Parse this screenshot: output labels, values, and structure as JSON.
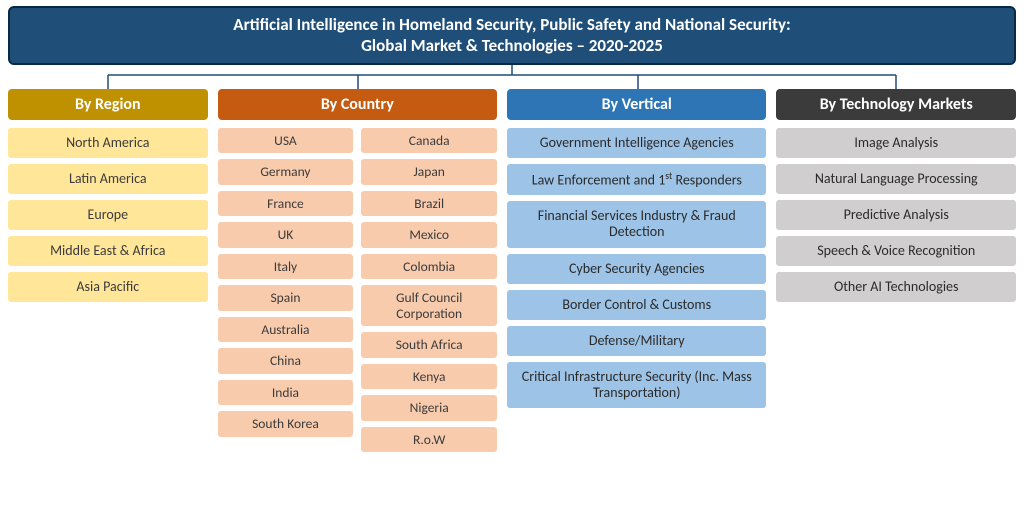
{
  "title": {
    "line1": "Artificial Intelligence in Homeland Security, Public Safety and National Security:",
    "line2": "Global Market & Technologies – 2020-2025",
    "bg": "#1f4e79",
    "color": "#ffffff",
    "border": "#0a2a44",
    "fontsize": 17
  },
  "connector": {
    "line_color": "#1f4e79",
    "stroke_width": 1.5
  },
  "categories": {
    "region": {
      "label": "By Region",
      "header_bg": "#bf9000",
      "header_color": "#ffffff",
      "item_bg": "#ffe699",
      "item_color": "#3b3b3b",
      "items": [
        "North America",
        "Latin America",
        "Europe",
        "Middle East & Africa",
        "Asia Pacific"
      ]
    },
    "country": {
      "label": "By Country",
      "header_bg": "#c55a11",
      "header_color": "#ffffff",
      "item_bg": "#f8cbad",
      "item_color": "#3b3b3b",
      "col1": [
        "USA",
        "Germany",
        "France",
        "UK",
        "Italy",
        "Spain",
        "Australia",
        "China",
        "India",
        "South Korea"
      ],
      "col2": [
        "Canada",
        "Japan",
        "Brazil",
        "Mexico",
        "Colombia",
        "Gulf Council Corporation",
        "South Africa",
        "Kenya",
        "Nigeria",
        "R.o.W"
      ]
    },
    "vertical": {
      "label": "By Vertical",
      "header_bg": "#2e75b6",
      "header_color": "#ffffff",
      "item_bg": "#9dc3e6",
      "item_color": "#2a2a2a",
      "items": [
        "Government Intelligence Agencies",
        "Law Enforcement and 1<sup>st</sup> Responders",
        "Financial Services Industry & Fraud Detection",
        "Cyber Security Agencies",
        "Border Control & Customs",
        "Defense/Military",
        "Critical Infrastructure Security (Inc. Mass Transportation)"
      ]
    },
    "tech": {
      "label": "By Technology Markets",
      "header_bg": "#3b3b3b",
      "header_color": "#ffffff",
      "item_bg": "#d0cece",
      "item_color": "#2a2a2a",
      "items": [
        "Image Analysis",
        "Natural Language Processing",
        "Predictive Analysis",
        "Speech & Voice Recognition",
        "Other AI Technologies"
      ]
    }
  }
}
